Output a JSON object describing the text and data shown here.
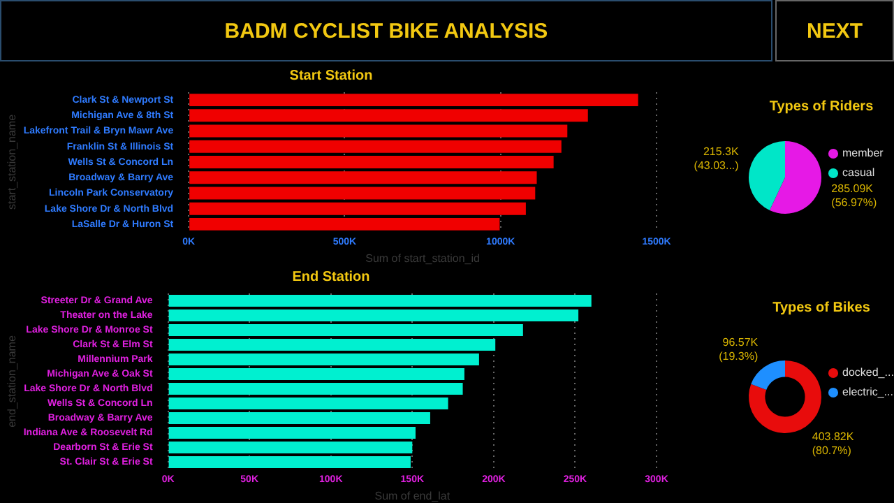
{
  "chart_data": [
    {
      "type": "other",
      "title": "BADM CYCLIST BIKE ANALYSIS",
      "annotations": [
        "NEXT"
      ]
    },
    {
      "type": "bar",
      "orientation": "horizontal",
      "title": "Start Station",
      "xlabel": "Sum of start_station_id",
      "ylabel": "start_station_name",
      "categories": [
        "Clark St & Newport St",
        "Michigan Ave & 8th St",
        "Lakefront Trail & Bryn Mawr Ave",
        "Franklin St & Illinois St",
        "Wells St & Concord Ln",
        "Broadway & Barry Ave",
        "Lincoln Park Conservatory",
        "Lake Shore Dr & North Blvd",
        "LaSalle Dr & Huron St"
      ],
      "values": [
        1441000,
        1280000,
        1214000,
        1195000,
        1170000,
        1116000,
        1111000,
        1081000,
        997000
      ],
      "color": "#f00000",
      "xlim": [
        0,
        1500000
      ],
      "xticks": [
        {
          "value": 0,
          "label": "0K"
        },
        {
          "value": 500000,
          "label": "500K"
        },
        {
          "value": 1000000,
          "label": "1000K"
        },
        {
          "value": 1500000,
          "label": "1500K"
        }
      ],
      "grid": "x"
    },
    {
      "type": "pie",
      "title": "Types of Riders",
      "categories": [
        "member",
        "casual"
      ],
      "values": [
        285090,
        215300
      ],
      "colors": [
        "#e619e6",
        "#00e6c8"
      ],
      "value_labels": [
        "285.09K\n(56.97%)",
        "215.3K\n(43.03...)"
      ],
      "legend": "right"
    },
    {
      "type": "bar",
      "orientation": "horizontal",
      "title": "End Station",
      "xlabel": "Sum of end_lat",
      "ylabel": "end_station_name",
      "categories": [
        "Streeter Dr & Grand Ave",
        "Theater on the Lake",
        "Lake Shore Dr & Monroe St",
        "Clark St & Elm St",
        "Millennium Park",
        "Michigan Ave & Oak St",
        "Lake Shore Dr & North Blvd",
        "Wells St & Concord Ln",
        "Broadway & Barry Ave",
        "Indiana Ave & Roosevelt Rd",
        "Dearborn St & Erie St",
        "St. Clair St & Erie St"
      ],
      "values": [
        260000,
        252000,
        218000,
        201000,
        191000,
        182000,
        181000,
        172000,
        161000,
        152000,
        150000,
        149000
      ],
      "color": "#00f0d0",
      "xlim": [
        0,
        300000
      ],
      "xticks": [
        {
          "value": 0,
          "label": "0K"
        },
        {
          "value": 50000,
          "label": "50K"
        },
        {
          "value": 100000,
          "label": "100K"
        },
        {
          "value": 150000,
          "label": "150K"
        },
        {
          "value": 200000,
          "label": "200K"
        },
        {
          "value": 250000,
          "label": "250K"
        },
        {
          "value": 300000,
          "label": "300K"
        }
      ],
      "grid": "x"
    },
    {
      "type": "donut",
      "title": "Types of Bikes",
      "categories": [
        "docked_...",
        "electric_..."
      ],
      "values": [
        403820,
        96570
      ],
      "colors": [
        "#e80c0c",
        "#1e8fff"
      ],
      "value_labels": [
        "403.82K\n(80.7%)",
        "96.57K\n(19.3%)"
      ],
      "legend": "right"
    }
  ]
}
